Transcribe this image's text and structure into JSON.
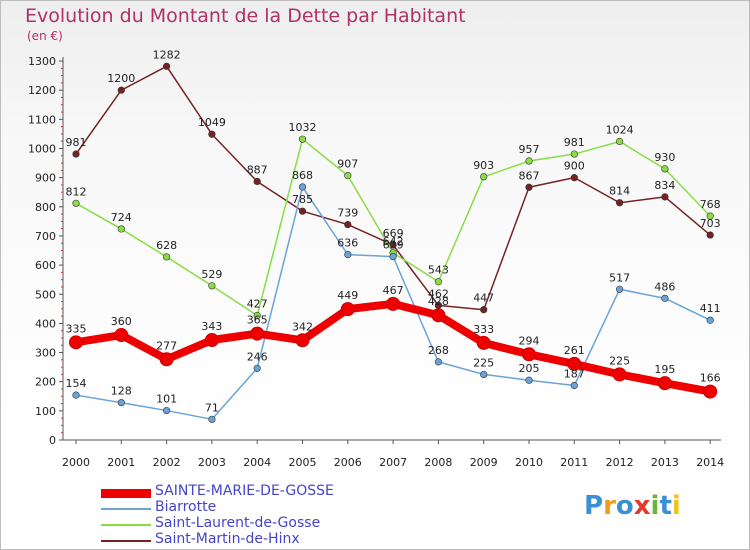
{
  "title": "Evolution du Montant de la Dette par Habitant",
  "subtitle": "(en €)",
  "logo": "Proxiti",
  "chart_data": {
    "type": "line",
    "x": [
      "2000",
      "2001",
      "2002",
      "2003",
      "2004",
      "2005",
      "2006",
      "2007",
      "2008",
      "2009",
      "2010",
      "2011",
      "2012",
      "2013",
      "2014"
    ],
    "yticks": [
      "0",
      "100",
      "200",
      "300",
      "400",
      "500",
      "600",
      "700",
      "800",
      "900",
      "1000",
      "1100",
      "1200",
      "1300"
    ],
    "ylim": [
      0,
      1300
    ],
    "grid": false,
    "legend_position": "bottom-left",
    "series": [
      {
        "name": "SAINTE-MARIE-DE-GOSSE",
        "color": "#ee0000",
        "values": [
          335,
          360,
          277,
          343,
          365,
          342,
          449,
          467,
          428,
          333,
          294,
          261,
          225,
          195,
          166
        ]
      },
      {
        "name": "Biarrotte",
        "color": "#6aa3d8",
        "values": [
          154,
          128,
          101,
          71,
          246,
          868,
          636,
          629,
          268,
          225,
          205,
          187,
          517,
          486,
          411
        ]
      },
      {
        "name": "Saint-Laurent-de-Gosse",
        "color": "#88dd44",
        "values": [
          812,
          724,
          628,
          529,
          427,
          1032,
          907,
          642,
          543,
          903,
          957,
          981,
          1024,
          930,
          768
        ]
      },
      {
        "name": "Saint-Martin-de-Hinx",
        "color": "#772222",
        "values": [
          981,
          1200,
          1282,
          1049,
          887,
          785,
          739,
          669,
          462,
          447,
          867,
          900,
          814,
          834,
          703
        ]
      }
    ]
  }
}
